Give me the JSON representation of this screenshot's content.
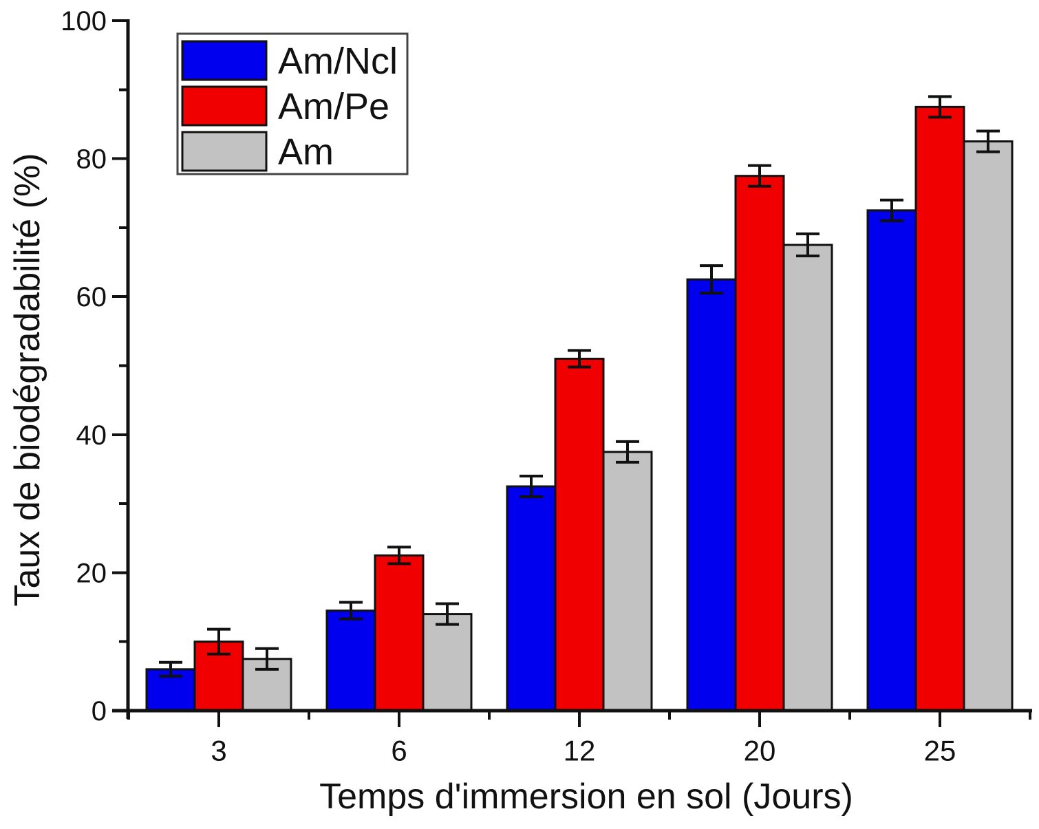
{
  "figure": {
    "background": "#ffffff"
  },
  "chart_data": {
    "type": "bar",
    "title": "",
    "xlabel": "Temps d'immersion en sol (Jours)",
    "ylabel": "Taux de biodégradabilité (%)",
    "categories": [
      "3",
      "6",
      "12",
      "20",
      "25"
    ],
    "series": [
      {
        "name": "Am/Ncl",
        "color": "#0000EE",
        "values": [
          6.0,
          14.5,
          32.5,
          62.5,
          72.5
        ],
        "errors": [
          1.0,
          1.2,
          1.5,
          2.0,
          1.5
        ]
      },
      {
        "name": "Am/Pe",
        "color": "#F00000",
        "values": [
          10.0,
          22.5,
          51.0,
          77.5,
          87.5
        ],
        "errors": [
          1.8,
          1.2,
          1.2,
          1.5,
          1.5
        ]
      },
      {
        "name": "Am",
        "color": "#C2C2C2",
        "values": [
          7.5,
          14.0,
          37.5,
          67.5,
          82.5
        ],
        "errors": [
          1.5,
          1.5,
          1.5,
          1.6,
          1.5
        ]
      }
    ],
    "ylim": [
      0,
      100
    ],
    "y_major_ticks": [
      0,
      20,
      40,
      60,
      80,
      100
    ],
    "y_minor_ticks": [
      10,
      30,
      50,
      70,
      90
    ],
    "error_bars": true,
    "grid": false,
    "legend": {
      "position": "top-left"
    }
  },
  "style": {
    "axis_color": "#111111",
    "text_color": "#111111",
    "bar_border_color": "#111111",
    "error_bar_color": "#111111",
    "legend_border_color": "#444444",
    "legend_background": "#ffffff"
  }
}
